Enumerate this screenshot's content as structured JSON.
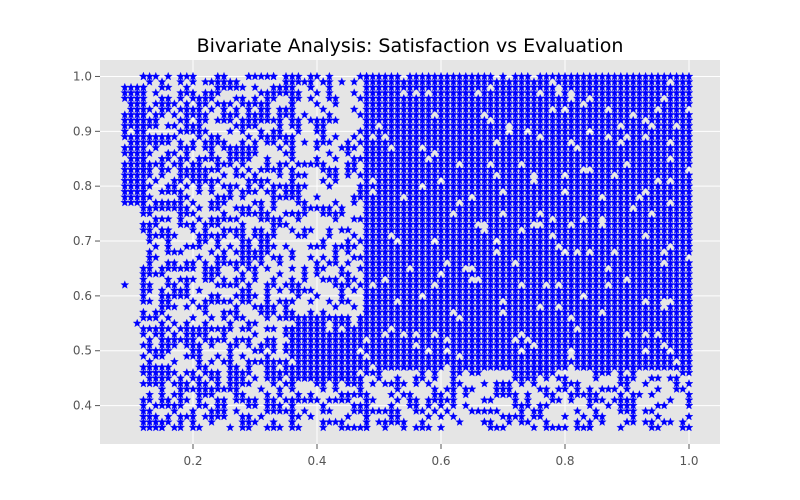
{
  "chart_data": {
    "type": "scatter",
    "title": "Bivariate Analysis: Satisfaction vs Evaluation",
    "xlabel": "",
    "ylabel": "",
    "xlim": [
      0.05,
      1.05
    ],
    "ylim": [
      0.33,
      1.03
    ],
    "x_ticks": [
      0.2,
      0.4,
      0.6,
      0.8,
      1.0
    ],
    "x_tick_labels": [
      "0.2",
      "0.4",
      "0.6",
      "0.8",
      "1.0"
    ],
    "y_ticks": [
      0.4,
      0.5,
      0.6,
      0.7,
      0.8,
      0.9,
      1.0
    ],
    "y_tick_labels": [
      "0.4",
      "0.5",
      "0.6",
      "0.7",
      "0.8",
      "0.9",
      "1.0"
    ],
    "grid": true,
    "marker": "star",
    "marker_color": "#0000ff",
    "background_color": "#e5e5e5",
    "grid_color": "#ffffff",
    "series": [
      {
        "regions": [
          {
            "x_range": [
              0.09,
              0.12
            ],
            "y_range": [
              0.77,
              0.98
            ],
            "density": 0.95
          },
          {
            "x_range": [
              0.12,
              0.36
            ],
            "y_range": [
              0.36,
              1.0
            ],
            "density": 0.55
          },
          {
            "x_range": [
              0.36,
              0.47
            ],
            "y_range": [
              0.45,
              0.56
            ],
            "density": 0.92
          },
          {
            "x_range": [
              0.36,
              0.48
            ],
            "y_range": [
              0.56,
              1.0
            ],
            "density": 0.35
          },
          {
            "x_range": [
              0.36,
              0.48
            ],
            "y_range": [
              0.36,
              0.45
            ],
            "density": 0.5
          },
          {
            "x_range": [
              0.48,
              1.0
            ],
            "y_range": [
              0.47,
              1.0
            ],
            "density": 0.94
          },
          {
            "x_range": [
              0.48,
              1.0
            ],
            "y_range": [
              0.36,
              0.47
            ],
            "density": 0.4
          }
        ],
        "sample_points": [
          [
            0.09,
            0.62
          ],
          [
            0.11,
            0.55
          ],
          [
            0.12,
            1.0
          ],
          [
            0.15,
            0.36
          ],
          [
            0.17,
            0.36
          ],
          [
            0.2,
            0.99
          ],
          [
            0.25,
            0.98
          ],
          [
            0.29,
            1.0
          ],
          [
            0.33,
            1.0
          ],
          [
            0.39,
            0.98
          ],
          [
            0.41,
            0.99
          ],
          [
            0.44,
            0.99
          ],
          [
            0.47,
            1.0
          ],
          [
            0.52,
            0.39
          ],
          [
            0.6,
            0.38
          ],
          [
            0.67,
            0.37
          ],
          [
            0.73,
            0.38
          ],
          [
            0.84,
            0.36
          ],
          [
            0.93,
            0.39
          ],
          [
            1.0,
            0.41
          ]
        ]
      }
    ]
  }
}
